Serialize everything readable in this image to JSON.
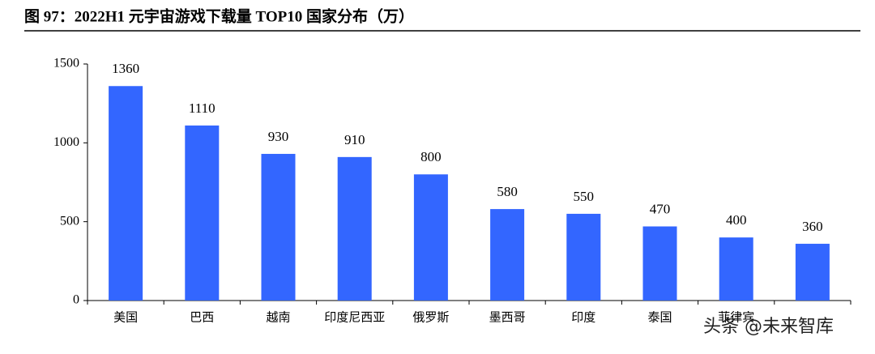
{
  "chart_data": {
    "type": "bar",
    "title": "图 97：2022H1 元宇宙游戏下载量 TOP10 国家分布（万）",
    "categories": [
      "美国",
      "巴西",
      "越南",
      "印度尼西亚",
      "俄罗斯",
      "墨西哥",
      "印度",
      "泰国",
      "菲律宾",
      null
    ],
    "values": [
      1360,
      1110,
      930,
      910,
      800,
      580,
      550,
      470,
      400,
      360
    ],
    "color": "#3366ff",
    "ylim": [
      0,
      1500
    ],
    "yticks": [
      0,
      500,
      1000,
      1500
    ],
    "grid": false,
    "watermark": "头条 @未来智库"
  }
}
